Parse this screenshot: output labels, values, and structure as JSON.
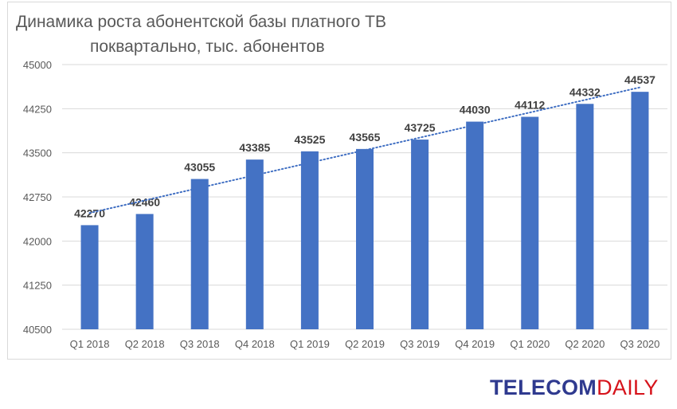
{
  "chart_data": {
    "type": "bar",
    "title_line1": "Динамика роста абонентской базы платного ТВ",
    "title_line2": "поквартально, тыс. абонентов",
    "categories": [
      "Q1 2018",
      "Q2 2018",
      "Q3 2018",
      "Q4 2018",
      "Q1 2019",
      "Q2 2019",
      "Q3 2019",
      "Q4 2019",
      "Q1 2020",
      "Q2 2020",
      "Q3 2020"
    ],
    "values": [
      42270,
      42460,
      43055,
      43385,
      43525,
      43565,
      43725,
      44030,
      44112,
      44332,
      44537
    ],
    "data_labels": [
      "42270",
      "42460",
      "43055",
      "43385",
      "43525",
      "43565",
      "43725",
      "44030",
      "44112",
      "44332",
      "44537"
    ],
    "y_ticks": [
      40500,
      41250,
      42000,
      42750,
      43500,
      44250,
      45000
    ],
    "y_tick_labels": [
      "40500",
      "41250",
      "42000",
      "42750",
      "43500",
      "44250",
      "45000"
    ],
    "ylim": [
      40500,
      45000
    ],
    "trendline": "linear, dotted",
    "grid": true,
    "bar_color": "#4472c4",
    "trend_color": "#4472c4"
  },
  "logo": {
    "part1": "TELECOM",
    "part2": "DAILY",
    "color1": "#2f3a8f",
    "color2": "#d6131b"
  }
}
